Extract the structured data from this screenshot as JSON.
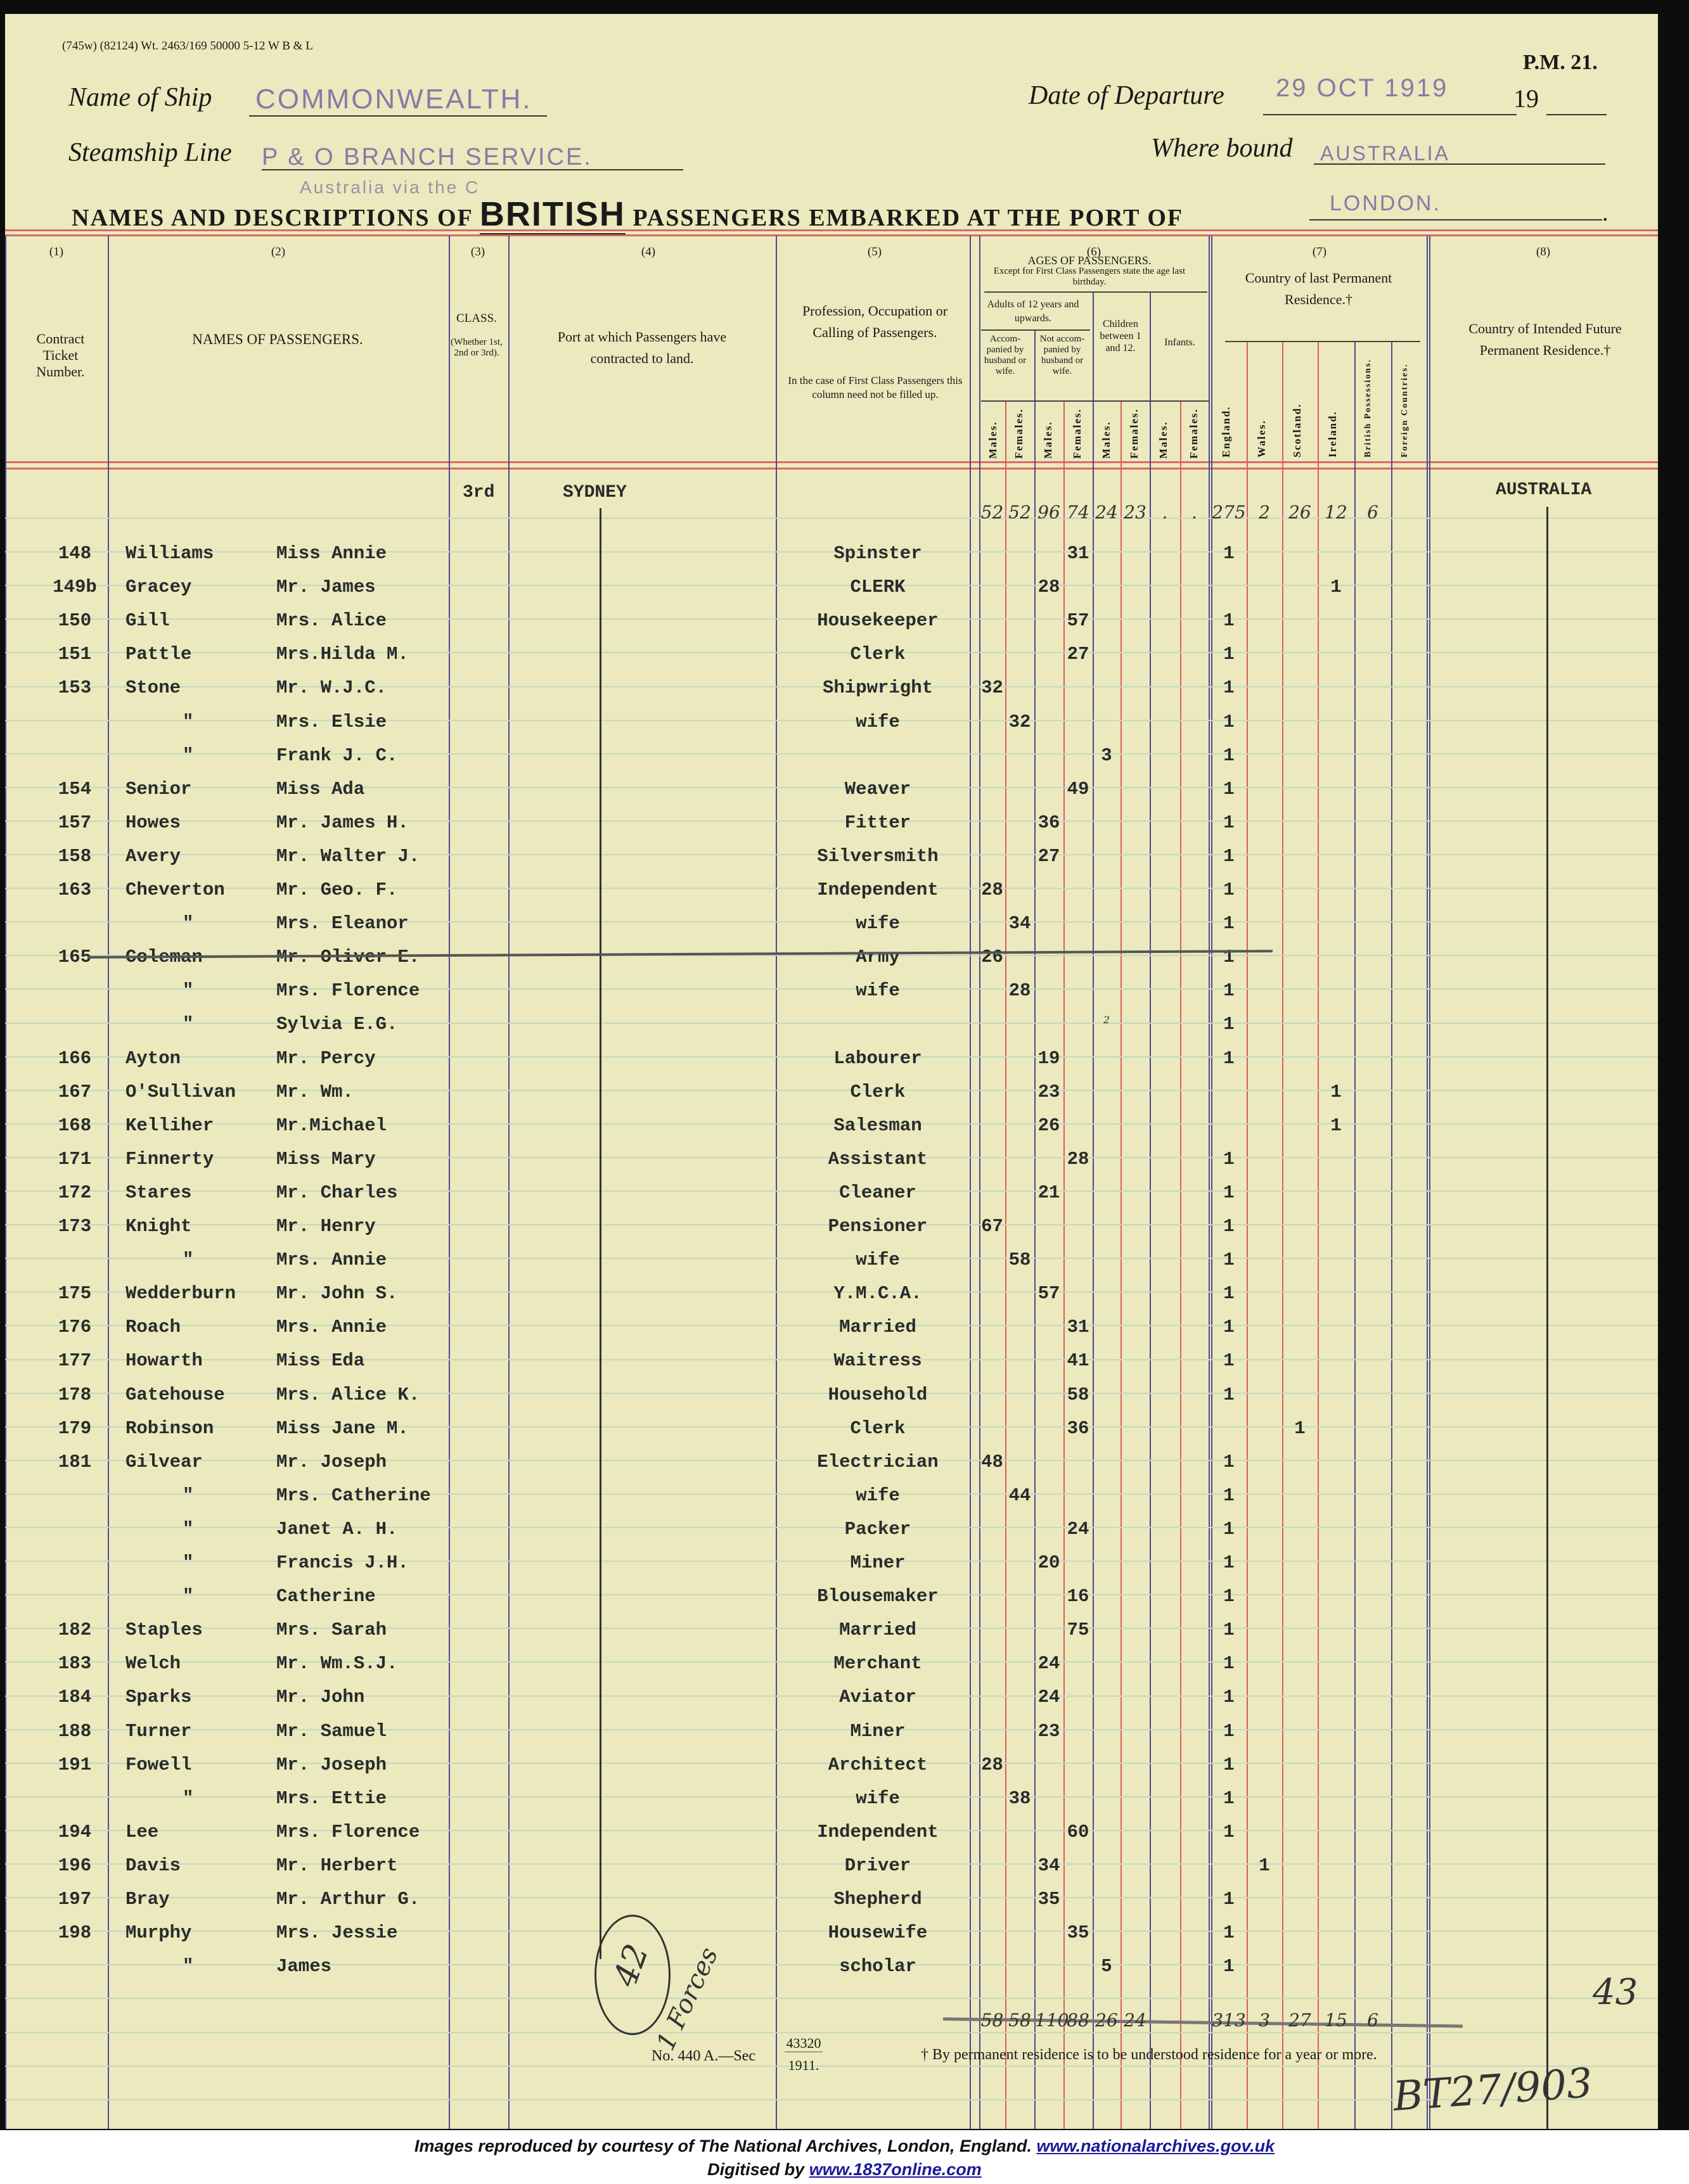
{
  "form": {
    "code": "(745w) (82124) Wt. 2463/169 50000 5-12 W B & L",
    "number": "P.M. 21.",
    "ship_label": "Name of Ship",
    "ship": "COMMONWEALTH.",
    "departure_label": "Date of Departure",
    "departure": "29 OCT 1919",
    "year_prefix": "19",
    "line_label": "Steamship Line",
    "line": "P & O BRANCH SERVICE.",
    "line_sub": "Australia via the C",
    "bound_label": "Where bound",
    "bound": "AUSTRALIA",
    "title_pre": "NAMES AND DESCRIPTIONS OF",
    "title_nationality": "BRITISH",
    "title_post": "PASSENGERS EMBARKED AT THE PORT OF",
    "port": "LONDON."
  },
  "columns": {
    "nums": [
      "(1)",
      "(2)",
      "(3)",
      "(4)",
      "(5)",
      "(6)",
      "(7)",
      "(8)"
    ],
    "ticket": "Contract Ticket Number.",
    "names": "NAMES OF PASSENGERS.",
    "class": "CLASS.",
    "class_note": "(Whether 1st, 2nd or 3rd).",
    "port": "Port at which Passengers have contracted to land.",
    "occupation": "Profession, Occupation or Calling of Passengers.",
    "occupation_note": "In the case of First Class Passengers this column need not be filled up.",
    "ages_title": "AGES OF PASSENGERS.",
    "ages_note": "Except for First Class Passengers state the age last birthday.",
    "adults": "Adults of 12 years and upwards.",
    "accompanied": "Accom-panied by husband or wife.",
    "not_accompanied": "Not accom-panied by husband or wife.",
    "children": "Children between 1 and 12.",
    "infants": "Infants.",
    "age_sub": [
      "Males.",
      "Females.",
      "Males.",
      "Females.",
      "Males.",
      "Females.",
      "Males.",
      "Females."
    ],
    "residence": "Country of last Permanent Residence.†",
    "residence_sub": [
      "England.",
      "Wales.",
      "Scotland.",
      "Ireland.",
      "British Possessions.",
      "Foreign Countries."
    ],
    "future": "Country of Intended Future Permanent Residence.†"
  },
  "carried": {
    "class": "3rd",
    "port": "SYDNEY",
    "future": "AUSTRALIA",
    "ages": [
      "52",
      "52",
      "96",
      "74",
      "24",
      "23",
      ".",
      "."
    ],
    "residence": [
      "275",
      "2",
      "26",
      "12",
      "6",
      ""
    ]
  },
  "rows": [
    {
      "ticket": "148",
      "surname": "Williams",
      "given": "Miss Annie",
      "occupation": "Spinster",
      "age": "31",
      "age_col": 3,
      "res_col": 0
    },
    {
      "ticket": "149b",
      "surname": "Gracey",
      "given": "Mr. James",
      "occupation": "CLERK",
      "age": "28",
      "age_col": 2,
      "res_col": 3
    },
    {
      "ticket": "150",
      "surname": "Gill",
      "given": "Mrs. Alice",
      "occupation": "Housekeeper",
      "age": "57",
      "age_col": 3,
      "res_col": 0
    },
    {
      "ticket": "151",
      "surname": "Pattle",
      "given": "Mrs.Hilda M.",
      "occupation": "Clerk",
      "age": "27",
      "age_col": 3,
      "res_col": 0
    },
    {
      "ticket": "153",
      "surname": "Stone",
      "given": "Mr. W.J.C.",
      "occupation": "Shipwright",
      "age": "32",
      "age_col": 0,
      "res_col": 0
    },
    {
      "ticket": "",
      "surname": "\"",
      "given": "Mrs. Elsie",
      "occupation": "wife",
      "age": "32",
      "age_col": 1,
      "res_col": 0
    },
    {
      "ticket": "",
      "surname": "\"",
      "given": "Frank J. C.",
      "occupation": "",
      "age": "3",
      "age_col": 4,
      "res_col": 0
    },
    {
      "ticket": "154",
      "surname": "Senior",
      "given": "Miss Ada",
      "occupation": "Weaver",
      "age": "49",
      "age_col": 3,
      "res_col": 0
    },
    {
      "ticket": "157",
      "surname": "Howes",
      "given": "Mr. James H.",
      "occupation": "Fitter",
      "age": "36",
      "age_col": 2,
      "res_col": 0
    },
    {
      "ticket": "158",
      "surname": "Avery",
      "given": "Mr. Walter J.",
      "occupation": "Silversmith",
      "age": "27",
      "age_col": 2,
      "res_col": 0
    },
    {
      "ticket": "163",
      "surname": "Cheverton",
      "given": "Mr. Geo. F.",
      "occupation": "Independent",
      "age": "28",
      "age_col": 0,
      "res_col": 0
    },
    {
      "ticket": "",
      "surname": "\"",
      "given": "Mrs. Eleanor",
      "occupation": "wife",
      "age": "34",
      "age_col": 1,
      "res_col": 0
    },
    {
      "ticket": "165",
      "surname": "Coleman",
      "given": "Mr. Oliver E.",
      "occupation": "Army",
      "age": "26",
      "age_col": 0,
      "res_col": 0,
      "struck": true
    },
    {
      "ticket": "",
      "surname": "\"",
      "given": "Mrs. Florence",
      "occupation": "wife",
      "age": "28",
      "age_col": 1,
      "res_col": 0
    },
    {
      "ticket": "",
      "surname": "\"",
      "given": "Sylvia E.G.",
      "occupation": "",
      "age": "2",
      "age_col": 4,
      "res_col": 0,
      "handwritten": true
    },
    {
      "ticket": "166",
      "surname": "Ayton",
      "given": "Mr. Percy",
      "occupation": "Labourer",
      "age": "19",
      "age_col": 2,
      "res_col": 0
    },
    {
      "ticket": "167",
      "surname": "O'Sullivan",
      "given": "Mr. Wm.",
      "occupation": "Clerk",
      "age": "23",
      "age_col": 2,
      "res_col": 3
    },
    {
      "ticket": "168",
      "surname": "Kelliher",
      "given": "Mr.Michael",
      "occupation": "Salesman",
      "age": "26",
      "age_col": 2,
      "res_col": 3
    },
    {
      "ticket": "171",
      "surname": "Finnerty",
      "given": "Miss Mary",
      "occupation": "Assistant",
      "age": "28",
      "age_col": 3,
      "res_col": 0
    },
    {
      "ticket": "172",
      "surname": "Stares",
      "given": "Mr. Charles",
      "occupation": "Cleaner",
      "age": "21",
      "age_col": 2,
      "res_col": 0
    },
    {
      "ticket": "173",
      "surname": "Knight",
      "given": "Mr. Henry",
      "occupation": "Pensioner",
      "age": "67",
      "age_col": 0,
      "res_col": 0
    },
    {
      "ticket": "",
      "surname": "\"",
      "given": "Mrs. Annie",
      "occupation": "wife",
      "age": "58",
      "age_col": 1,
      "res_col": 0
    },
    {
      "ticket": "175",
      "surname": "Wedderburn",
      "given": "Mr. John S.",
      "occupation": "Y.M.C.A.",
      "age": "57",
      "age_col": 2,
      "res_col": 0
    },
    {
      "ticket": "176",
      "surname": "Roach",
      "given": "Mrs. Annie",
      "occupation": "Married",
      "age": "31",
      "age_col": 3,
      "res_col": 0
    },
    {
      "ticket": "177",
      "surname": "Howarth",
      "given": "Miss Eda",
      "occupation": "Waitress",
      "age": "41",
      "age_col": 3,
      "res_col": 0
    },
    {
      "ticket": "178",
      "surname": "Gatehouse",
      "given": "Mrs. Alice K.",
      "occupation": "Household",
      "age": "58",
      "age_col": 3,
      "res_col": 0
    },
    {
      "ticket": "179",
      "surname": "Robinson",
      "given": "Miss Jane M.",
      "occupation": "Clerk",
      "age": "36",
      "age_col": 3,
      "res_col": 2
    },
    {
      "ticket": "181",
      "surname": "Gilvear",
      "given": "Mr. Joseph",
      "occupation": "Electrician",
      "age": "48",
      "age_col": 0,
      "res_col": 0
    },
    {
      "ticket": "",
      "surname": "\"",
      "given": "Mrs. Catherine",
      "occupation": "wife",
      "age": "44",
      "age_col": 1,
      "res_col": 0
    },
    {
      "ticket": "",
      "surname": "\"",
      "given": "Janet A. H.",
      "occupation": "Packer",
      "age": "24",
      "age_col": 3,
      "res_col": 0
    },
    {
      "ticket": "",
      "surname": "\"",
      "given": "Francis J.H.",
      "occupation": "Miner",
      "age": "20",
      "age_col": 2,
      "res_col": 0
    },
    {
      "ticket": "",
      "surname": "\"",
      "given": "Catherine",
      "occupation": "Blousemaker",
      "age": "16",
      "age_col": 3,
      "res_col": 0
    },
    {
      "ticket": "182",
      "surname": "Staples",
      "given": "Mrs. Sarah",
      "occupation": "Married",
      "age": "75",
      "age_col": 3,
      "res_col": 0
    },
    {
      "ticket": "183",
      "surname": "Welch",
      "given": "Mr. Wm.S.J.",
      "occupation": "Merchant",
      "age": "24",
      "age_col": 2,
      "res_col": 0
    },
    {
      "ticket": "184",
      "surname": "Sparks",
      "given": "Mr. John",
      "occupation": "Aviator",
      "age": "24",
      "age_col": 2,
      "res_col": 0
    },
    {
      "ticket": "188",
      "surname": "Turner",
      "given": "Mr. Samuel",
      "occupation": "Miner",
      "age": "23",
      "age_col": 2,
      "res_col": 0
    },
    {
      "ticket": "191",
      "surname": "Fowell",
      "given": "Mr. Joseph",
      "occupation": "Architect",
      "age": "28",
      "age_col": 0,
      "res_col": 0
    },
    {
      "ticket": "",
      "surname": "\"",
      "given": "Mrs. Ettie",
      "occupation": "wife",
      "age": "38",
      "age_col": 1,
      "res_col": 0
    },
    {
      "ticket": "194",
      "surname": "Lee",
      "given": "Mrs. Florence",
      "occupation": "Independent",
      "age": "60",
      "age_col": 3,
      "res_col": 0
    },
    {
      "ticket": "196",
      "surname": "Davis",
      "given": "Mr. Herbert",
      "occupation": "Driver",
      "age": "34",
      "age_col": 2,
      "res_col": 1
    },
    {
      "ticket": "197",
      "surname": "Bray",
      "given": "Mr. Arthur G.",
      "occupation": "Shepherd",
      "age": "35",
      "age_col": 2,
      "res_col": 0
    },
    {
      "ticket": "198",
      "surname": "Murphy",
      "given": "Mrs. Jessie",
      "occupation": "Housewife",
      "age": "35",
      "age_col": 3,
      "res_col": 0
    },
    {
      "ticket": "",
      "surname": "\"",
      "given": "James",
      "occupation": "scholar",
      "age": "5",
      "age_col": 4,
      "res_col": 0
    }
  ],
  "residence_mark": "1",
  "totals": {
    "ages": [
      "58",
      "58",
      "110",
      "88",
      "26",
      "24",
      "",
      ""
    ],
    "residence": [
      "313",
      "3",
      "27",
      "15",
      "6",
      ""
    ]
  },
  "annotations": {
    "circled": "42",
    "forces": "1 Forces",
    "page_count": "43",
    "reference": "BT27/903"
  },
  "footer": {
    "form_no": "No. 440 A.—Sec",
    "form_num_top": "43320",
    "form_num_bottom": "1911.",
    "note": "† By permanent residence is to be understood residence for a year or more.",
    "credit": "Images reproduced by courtesy of The National Archives, London, England.",
    "credit_link": "www.nationalarchives.gov.uk",
    "digitised": "Digitised by",
    "digitised_link": "www.1837online.com"
  }
}
